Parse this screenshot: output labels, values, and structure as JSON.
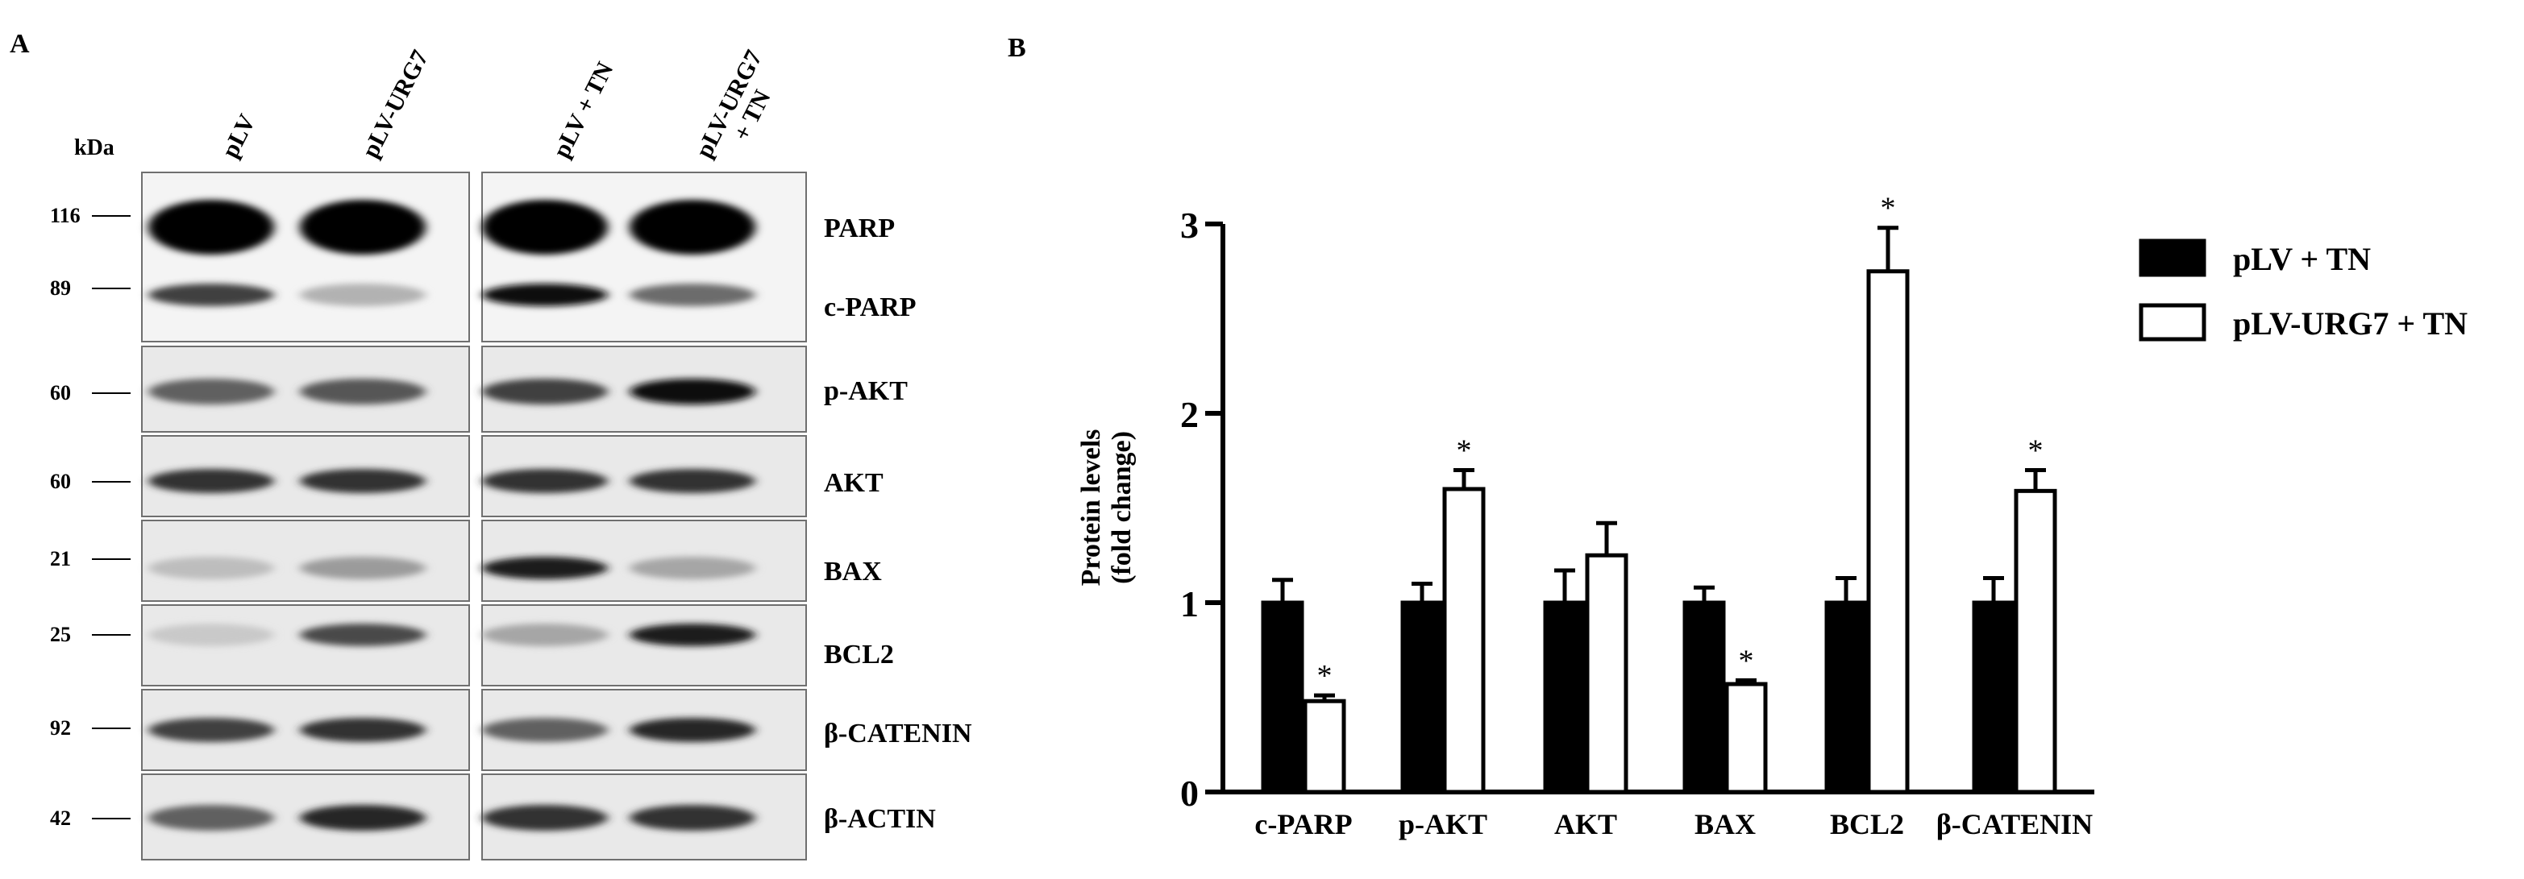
{
  "panel_a": {
    "panel_label": "A",
    "kda_label": "kDa",
    "lane_labels": [
      "pLV",
      "pLV-URG7",
      "pLV + TN",
      "pLV-URG7\n+ TN"
    ],
    "markers": [
      "116",
      "89",
      "60",
      "60",
      "21",
      "25",
      "92",
      "42"
    ],
    "proteins": [
      "PARP",
      "c-PARP",
      "p-AKT",
      "AKT",
      "BAX",
      "BCL2",
      "β-CATENIN",
      "β-ACTIN"
    ],
    "band_intensity": {
      "PARP": [
        1.0,
        1.0,
        1.0,
        1.0
      ],
      "c-PARP": [
        0.75,
        0.25,
        0.95,
        0.55
      ],
      "p-AKT": [
        0.6,
        0.65,
        0.75,
        0.95
      ],
      "AKT": [
        0.8,
        0.8,
        0.8,
        0.8
      ],
      "BAX": [
        0.2,
        0.35,
        0.9,
        0.3
      ],
      "BCL2": [
        0.15,
        0.7,
        0.3,
        0.9
      ],
      "β-CATENIN": [
        0.75,
        0.8,
        0.6,
        0.85
      ],
      "β-ACTIN": [
        0.6,
        0.85,
        0.8,
        0.8
      ]
    }
  },
  "chart_data": {
    "panel_label": "B",
    "type": "bar",
    "title": "",
    "xlabel": "",
    "ylabel": "Protein levels\n(fold change)",
    "categories": [
      "c-PARP",
      "p-AKT",
      "AKT",
      "BAX",
      "BCL2",
      "β-CATENIN"
    ],
    "series": [
      {
        "name": "pLV + TN",
        "values": [
          1.0,
          1.0,
          1.0,
          1.0,
          1.0,
          1.0
        ],
        "errors": [
          0.12,
          0.1,
          0.17,
          0.08,
          0.13,
          0.13
        ],
        "fill": "#000000"
      },
      {
        "name": "pLV-URG7 + TN",
        "values": [
          0.48,
          1.6,
          1.25,
          0.57,
          2.75,
          1.59
        ],
        "errors": [
          0.03,
          0.1,
          0.17,
          0.02,
          0.23,
          0.11
        ],
        "fill": "#ffffff"
      }
    ],
    "significance": [
      "*",
      "*",
      "",
      "*",
      "*",
      "*"
    ],
    "ylim": [
      0,
      3
    ],
    "yticks": [
      "0",
      "1",
      "2",
      "3"
    ],
    "legend_position": "top-right"
  }
}
